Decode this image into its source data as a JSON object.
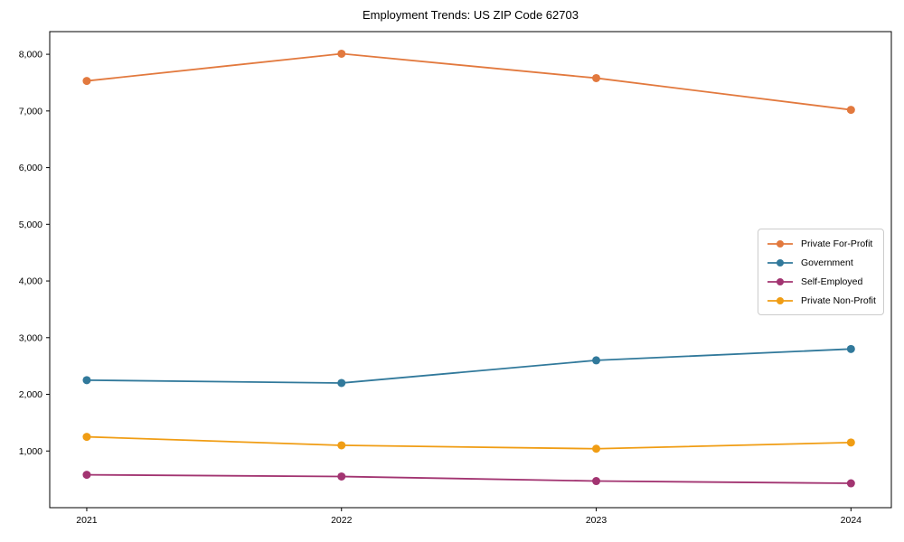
{
  "chart_data": {
    "type": "line",
    "title": "Employment Trends: US ZIP Code 62703",
    "categories": [
      "2021",
      "2022",
      "2023",
      "2024"
    ],
    "series": [
      {
        "name": "Private For-Profit",
        "color": "#e2793e",
        "values": [
          7530,
          8010,
          7580,
          7020
        ]
      },
      {
        "name": "Government",
        "color": "#31799b",
        "values": [
          2250,
          2200,
          2600,
          2800
        ]
      },
      {
        "name": "Self-Employed",
        "color": "#a23471",
        "values": [
          580,
          550,
          470,
          430
        ]
      },
      {
        "name": "Private Non-Profit",
        "color": "#f09d14",
        "values": [
          1250,
          1100,
          1040,
          1150
        ]
      }
    ],
    "xlabel": "",
    "ylabel": "",
    "ylim": [
      0,
      8400
    ],
    "yticks": [
      1000,
      2000,
      3000,
      4000,
      5000,
      6000,
      7000,
      8000
    ],
    "ytick_labels": [
      "1,000",
      "2,000",
      "3,000",
      "4,000",
      "5,000",
      "6,000",
      "7,000",
      "8,000"
    ],
    "grid": false,
    "legend_position": "center-right",
    "marker": "circle",
    "frame_color": "#000000"
  }
}
